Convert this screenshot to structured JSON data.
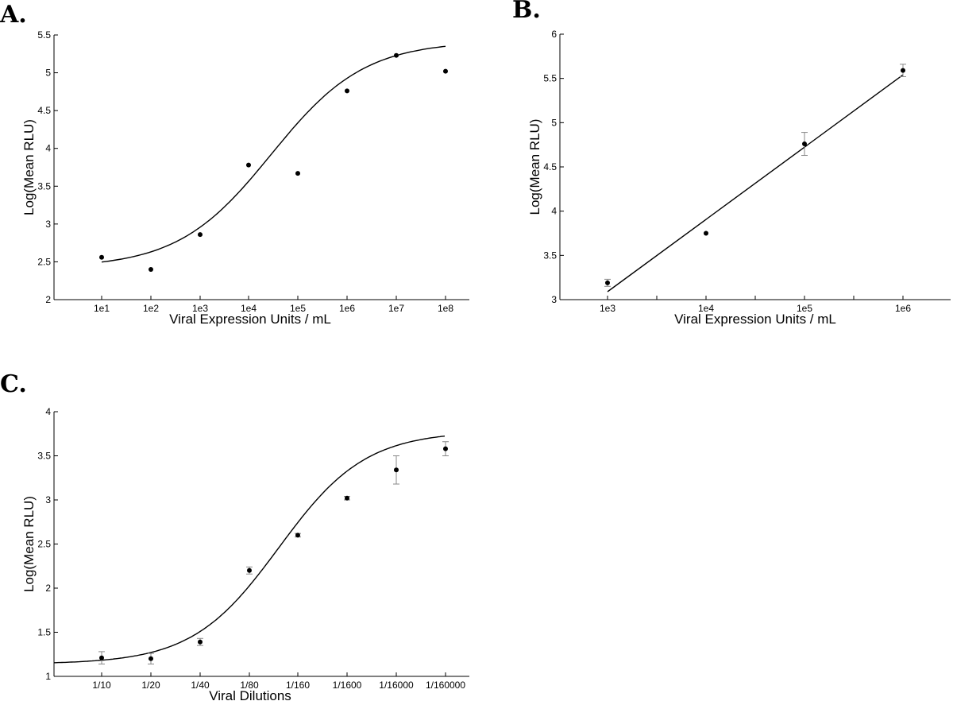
{
  "chart_data": [
    {
      "panel": "A.",
      "type": "scatter",
      "xlabel": "Viral Expression Units / mL",
      "ylabel": "Log(Mean RLU)",
      "x_tick_labels": [
        "1e1",
        "1e2",
        "1e3",
        "1e4",
        "1e5",
        "1e6",
        "1e7",
        "1e8"
      ],
      "y_ticks": [
        "2",
        "2.5",
        "3",
        "3.5",
        "4",
        "4.5",
        "5",
        "5.5"
      ],
      "ylim": [
        2,
        5.5
      ],
      "xscale": "log",
      "points": [
        {
          "x": "1e1",
          "y": 2.56
        },
        {
          "x": "1e2",
          "y": 2.4
        },
        {
          "x": "1e3",
          "y": 2.86
        },
        {
          "x": "1e4",
          "y": 3.78
        },
        {
          "x": "1e5",
          "y": 3.67
        },
        {
          "x": "1e6",
          "y": 4.76
        },
        {
          "x": "1e7",
          "y": 5.23
        },
        {
          "x": "1e8",
          "y": 5.02
        }
      ],
      "fit": "sigmoid"
    },
    {
      "panel": "B.",
      "type": "scatter",
      "xlabel": "Viral Expression Units / mL",
      "ylabel": "Log(Mean RLU)",
      "x_tick_labels": [
        "1e3",
        "1e4",
        "1e5",
        "1e6"
      ],
      "y_ticks": [
        "3",
        "3.5",
        "4",
        "4.5",
        "5",
        "5.5",
        "6"
      ],
      "ylim": [
        3,
        6
      ],
      "xscale": "log",
      "points": [
        {
          "x": "1e3",
          "y": 3.19,
          "err": 0.04
        },
        {
          "x": "1e4",
          "y": 3.75,
          "err": 0
        },
        {
          "x": "1e5",
          "y": 4.76,
          "err": 0.13
        },
        {
          "x": "1e6",
          "y": 5.59,
          "err": 0.07
        }
      ],
      "fit": "linear"
    },
    {
      "panel": "C.",
      "type": "scatter",
      "xlabel": "Viral Dilutions",
      "ylabel": "Log(Mean RLU)",
      "x_tick_labels": [
        "1/10",
        "1/20",
        "1/40",
        "1/80",
        "1/160",
        "1/1600",
        "1/16000",
        "1/160000"
      ],
      "y_ticks": [
        "1",
        "1.5",
        "2",
        "2.5",
        "3",
        "3.5",
        "4"
      ],
      "ylim": [
        1,
        4
      ],
      "points": [
        {
          "x": "1/10",
          "y": 1.21,
          "err": 0.07
        },
        {
          "x": "1/20",
          "y": 1.2,
          "err": 0.06
        },
        {
          "x": "1/40",
          "y": 1.39,
          "err": 0.04
        },
        {
          "x": "1/80",
          "y": 2.2,
          "err": 0.04
        },
        {
          "x": "1/160",
          "y": 2.6,
          "err": 0.02
        },
        {
          "x": "1/1600",
          "y": 3.02,
          "err": 0.02
        },
        {
          "x": "1/16000",
          "y": 3.34,
          "err": 0.16
        },
        {
          "x": "1/160000",
          "y": 3.58,
          "err": 0.08
        }
      ],
      "fit": "sigmoid"
    }
  ]
}
